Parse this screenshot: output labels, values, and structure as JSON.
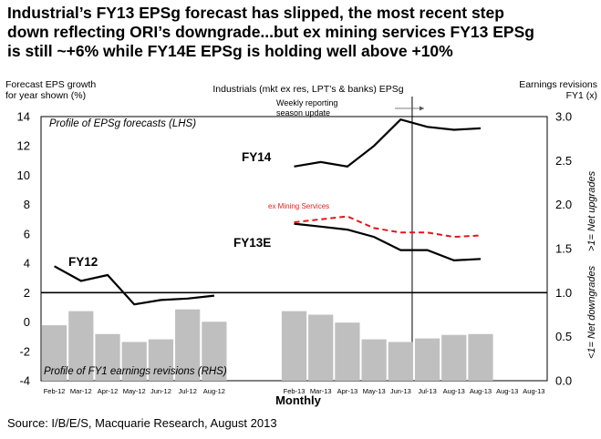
{
  "title": "Industrial’s FY13 EPSg forecast has slipped, the most recent step\ndown reflecting ORI’s downgrade...but ex mining services FY13 EPSg\nis still ~+6% while FY14E EPSg is holding well above +10%",
  "source": "Source: I/B/E/S, Macquarie Research, August 2013",
  "chart_data": {
    "type": "line",
    "chart_title": "Industrials (mkt ex res, LPT’s & banks) EPSg",
    "left_axis_label": "Forecast EPS growth\nfor year shown (%)",
    "right_axis_label": "Earnings revisions\nFY1 (x)",
    "right_side_label_upper": ">1= Net upgrades",
    "right_side_label_lower": "<1= Net downgrades",
    "xlabel": "Monthly",
    "categories": [
      "Feb-12",
      "Mar-12",
      "Apr-12",
      "May-12",
      "Jun-12",
      "Jul-12",
      "Aug-12",
      "",
      "",
      "Feb-13",
      "Mar-13",
      "Apr-13",
      "May-13",
      "Jun-13",
      "Jul-13",
      "Aug-13",
      "Aug-13",
      "Aug-13",
      "Aug-13"
    ],
    "ylim_left": [
      -4,
      14
    ],
    "yticks_left": [
      "14",
      "12",
      "10",
      "8",
      "6",
      "4",
      "2",
      "0",
      "-2",
      "-4"
    ],
    "ylim_right": [
      0,
      3
    ],
    "yticks_right": [
      "3.0",
      "2.5",
      "2.0",
      "1.5",
      "1.0",
      "0.5",
      "0.0"
    ],
    "reference_line_right": 1.0,
    "annotations": {
      "eps_profile": "Profile of EPSg forecasts (LHS)",
      "revisions_profile": "Profile of FY1 earnings revisions (RHS)",
      "weekly_update": "Weekly reporting\nseason update",
      "fy12": "FY12",
      "fy13e": "FY13E",
      "fy14": "FY14",
      "ex_mining": "ex Mining Services"
    },
    "vertical_marker_between": [
      "Jun-13",
      "Jul-13"
    ],
    "series": [
      {
        "name": "FY12",
        "axis": "left",
        "style": "solid-black",
        "x": [
          0,
          1,
          2,
          3,
          4,
          5,
          6
        ],
        "values": [
          3.8,
          2.8,
          3.2,
          1.2,
          1.5,
          1.6,
          1.8
        ]
      },
      {
        "name": "FY13E",
        "axis": "left",
        "style": "solid-black",
        "x": [
          9,
          10,
          11,
          12,
          13,
          14,
          15,
          16
        ],
        "values": [
          6.7,
          6.5,
          6.3,
          5.8,
          4.9,
          4.9,
          4.2,
          4.3
        ]
      },
      {
        "name": "ex Mining Services",
        "axis": "left",
        "style": "dashed-red",
        "x": [
          9,
          10,
          11,
          12,
          13,
          14,
          15,
          16
        ],
        "values": [
          6.8,
          7.0,
          7.2,
          6.4,
          6.1,
          6.1,
          5.8,
          5.9
        ]
      },
      {
        "name": "FY14",
        "axis": "left",
        "style": "solid-black",
        "x": [
          9,
          10,
          11,
          12,
          13,
          14,
          15,
          16
        ],
        "values": [
          10.6,
          10.9,
          10.6,
          12.0,
          13.8,
          13.3,
          13.1,
          13.2
        ]
      },
      {
        "name": "FY1 earnings revisions",
        "axis": "right",
        "style": "grey-bars",
        "x": [
          0,
          1,
          2,
          3,
          4,
          5,
          6,
          9,
          10,
          11,
          12,
          13,
          14,
          15,
          16
        ],
        "values": [
          0.63,
          0.79,
          0.53,
          0.44,
          0.47,
          0.81,
          0.67,
          0.79,
          0.75,
          0.66,
          0.47,
          0.44,
          0.48,
          0.52,
          0.53
        ]
      }
    ]
  }
}
